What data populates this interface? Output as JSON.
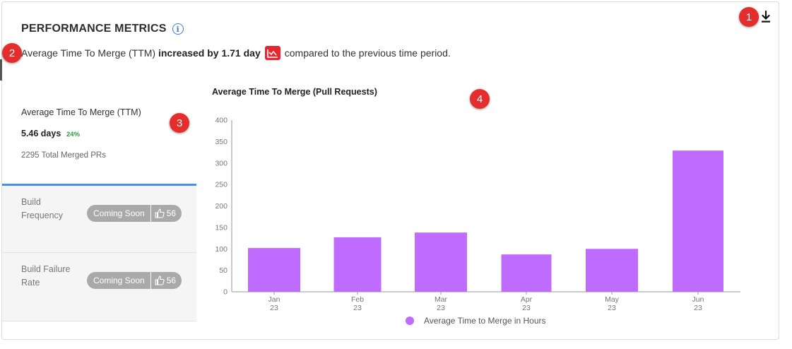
{
  "header": {
    "title": "PERFORMANCE METRICS",
    "info_icon": "info-icon",
    "download_icon": "download-icon"
  },
  "summary": {
    "prefix": "Average Time To Merge (TTM)",
    "emphasis": "increased by 1.71 day",
    "trend_icon": "trend-chart-icon",
    "suffix": "compared to the previous time period."
  },
  "annotations": [
    "1",
    "2",
    "3",
    "4"
  ],
  "metric": {
    "label": "Average Time To Merge (TTM)",
    "value": "5.46 days",
    "change": "24%",
    "sub": "2295 Total Merged PRs"
  },
  "coming_soon": [
    {
      "label": "Build Frequency",
      "badge": "Coming Soon",
      "likes": "56"
    },
    {
      "label": "Build Failure Rate",
      "badge": "Coming Soon",
      "likes": "56"
    }
  ],
  "colors": {
    "bar": "#bf6bff",
    "accent": "#4a8fe0",
    "alert": "#e8262e",
    "positive": "#2e9a3c"
  },
  "chart_data": {
    "type": "bar",
    "title": "Average Time To Merge (Pull Requests)",
    "categories": [
      "Jan\n23",
      "Feb\n23",
      "Mar\n23",
      "Apr\n23",
      "May\n23",
      "Jun\n23"
    ],
    "series": [
      {
        "name": "Average Time to Merge in Hours",
        "values": [
          102,
          127,
          138,
          87,
          100,
          329
        ]
      }
    ],
    "ylim": [
      0,
      400
    ],
    "yticks": [
      0,
      50,
      100,
      150,
      200,
      250,
      300,
      350,
      400
    ],
    "grid": false,
    "legend": "bottom-center"
  }
}
